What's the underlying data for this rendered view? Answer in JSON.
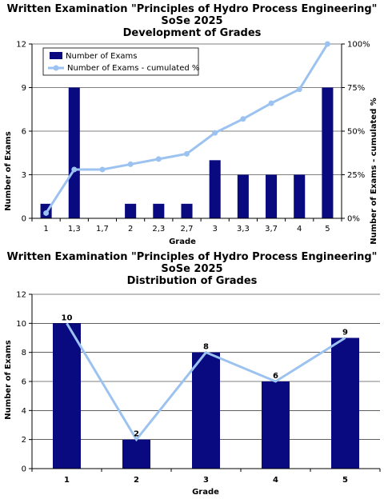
{
  "colors": {
    "bar": "#0a0a80",
    "line": "#9cc3f0",
    "axis": "#000000",
    "grid": "#000000"
  },
  "chart_data": [
    {
      "type": "bar",
      "title_lines": [
        "Written Examination \"Principles of Hydro Process Engineering\"",
        "SoSe 2025",
        "Development of Grades"
      ],
      "xlabel": "Grade",
      "ylabel": "Number of Exams",
      "y2label": "Number of Exams - cumulated %",
      "categories": [
        "1",
        "1,3",
        "1,7",
        "2",
        "2,3",
        "2,7",
        "3",
        "3,3",
        "3,7",
        "4",
        "5"
      ],
      "ylim": [
        0,
        12
      ],
      "yticks": [
        "0",
        "3",
        "6",
        "9",
        "12"
      ],
      "y2lim": [
        0,
        100
      ],
      "y2ticks": [
        "0%",
        "25%",
        "50%",
        "75%",
        "100%"
      ],
      "legend": [
        "Number of Exams",
        "Number of Exams - cumulated %"
      ],
      "legend_position": "top-left",
      "series": [
        {
          "name": "Number of Exams",
          "type": "bar",
          "values": [
            1,
            9,
            0,
            1,
            1,
            1,
            4,
            3,
            3,
            3,
            9
          ]
        },
        {
          "name": "Number of Exams - cumulated %",
          "type": "line",
          "axis": "secondary",
          "values": [
            3,
            28,
            28,
            31,
            34,
            37,
            49,
            57,
            66,
            74,
            100
          ]
        }
      ]
    },
    {
      "type": "bar",
      "title_lines": [
        "Written Examination \"Principles of Hydro Process Engineering\"",
        "SoSe 2025",
        "Distribution of Grades"
      ],
      "xlabel": "Grade",
      "ylabel": "Number of Exams",
      "categories": [
        "1",
        "2",
        "3",
        "4",
        "5"
      ],
      "ylim": [
        0,
        12
      ],
      "yticks": [
        "0",
        "2",
        "4",
        "6",
        "8",
        "10",
        "12"
      ],
      "series": [
        {
          "type": "bar",
          "values": [
            10,
            2,
            8,
            6,
            9
          ]
        },
        {
          "type": "line",
          "values": [
            10,
            2,
            8,
            6,
            9
          ]
        }
      ],
      "data_labels": [
        "10",
        "2",
        "8",
        "6",
        "9"
      ]
    }
  ]
}
